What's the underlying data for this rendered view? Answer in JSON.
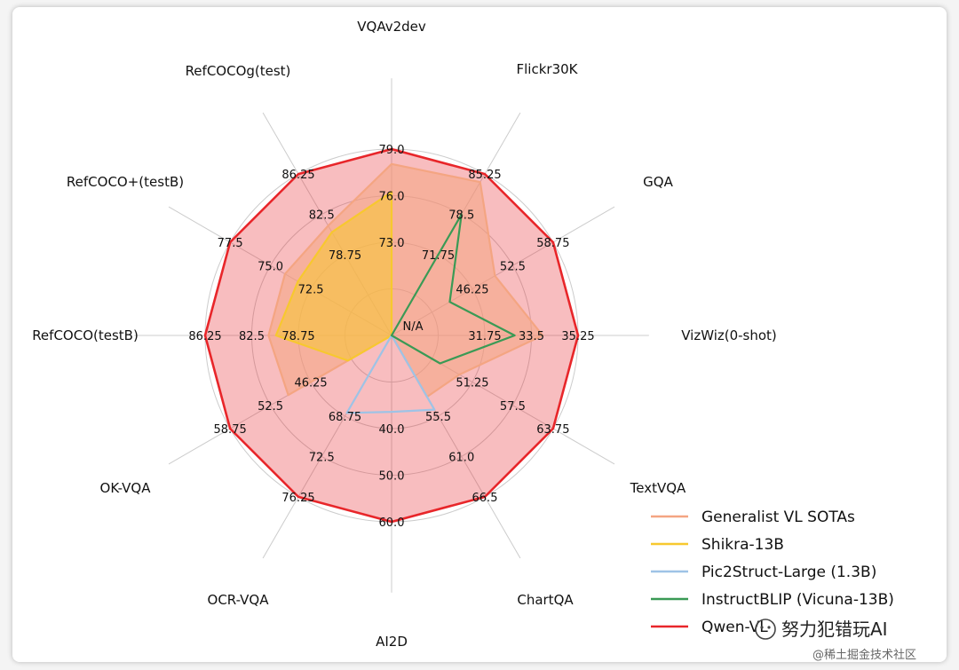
{
  "chart_data": {
    "type": "radar",
    "axes": [
      "VQAv2dev",
      "Flickr30K",
      "GQA",
      "VizWiz(0-shot)",
      "TextVQA",
      "ChartQA",
      "AI2D",
      "OCR-VQA",
      "OK-VQA",
      "RefCOCO(testB)",
      "RefCOCO+(testB)",
      "RefCOCOg(test)"
    ],
    "tick_labels": [
      [
        "73.0",
        "76.0",
        "79.0"
      ],
      [
        "71.75",
        "78.5",
        "85.25"
      ],
      [
        "46.25",
        "52.5",
        "58.75"
      ],
      [
        "31.75",
        "33.5",
        "35.25"
      ],
      [
        "51.25",
        "57.5",
        "63.75"
      ],
      [
        "55.5",
        "61.0",
        "66.5"
      ],
      [
        "40.0",
        "50.0",
        "60.0"
      ],
      [
        "68.75",
        "72.5",
        "76.25"
      ],
      [
        "46.25",
        "52.5",
        "58.75"
      ],
      [
        "78.75",
        "82.5",
        "86.25"
      ],
      [
        "72.5",
        "75.0",
        "77.5"
      ],
      [
        "78.75",
        "82.5",
        "86.25"
      ]
    ],
    "center_label": "N/A",
    "radial_range": [
      0,
      1
    ],
    "ring_levels": [
      0.25,
      0.5,
      0.75,
      1.0
    ],
    "series": [
      {
        "name": "Generalist VL SOTAs",
        "color": "#f4a582",
        "fill": true,
        "values": [
          0.92,
          0.95,
          0.64,
          0.81,
          0.42,
          0.38,
          0.0,
          0.0,
          0.64,
          0.66,
          0.66,
          0.68
        ]
      },
      {
        "name": "Shikra-13B",
        "color": "#f7c82f",
        "fill": true,
        "values": [
          0.77,
          0.0,
          0.0,
          0.0,
          0.0,
          0.0,
          0.0,
          0.0,
          0.27,
          0.62,
          0.58,
          0.64
        ]
      },
      {
        "name": "Pic2Struct-Large (1.3B)",
        "color": "#9ec3e6",
        "fill": false,
        "values": [
          0.0,
          0.0,
          0.0,
          0.0,
          0.0,
          0.46,
          0.41,
          0.48,
          0.0,
          0.0,
          0.0,
          0.0
        ]
      },
      {
        "name": "InstructBLIP (Vicuna-13B)",
        "color": "#3a9a55",
        "fill": false,
        "values": [
          0.0,
          0.75,
          0.36,
          0.66,
          0.3,
          0.0,
          0.0,
          0.0,
          0.0,
          0.0,
          0.0,
          0.0
        ]
      },
      {
        "name": "Qwen-VL",
        "color": "#e8262a",
        "fill": true,
        "values": [
          1.0,
          1.0,
          1.0,
          1.0,
          1.0,
          1.0,
          1.0,
          1.0,
          1.0,
          1.0,
          1.0,
          1.0
        ]
      }
    ],
    "legend_position": "bottom-right"
  },
  "legend": {
    "items": [
      "Generalist VL SOTAs",
      "Shikra-13B",
      "Pic2Struct-Large (1.3B)",
      "InstructBLIP (Vicuna-13B)",
      "Qwen-VL"
    ]
  },
  "watermark": {
    "line1": "努力犯错玩AI",
    "line2": "@稀土掘金技术社区"
  }
}
